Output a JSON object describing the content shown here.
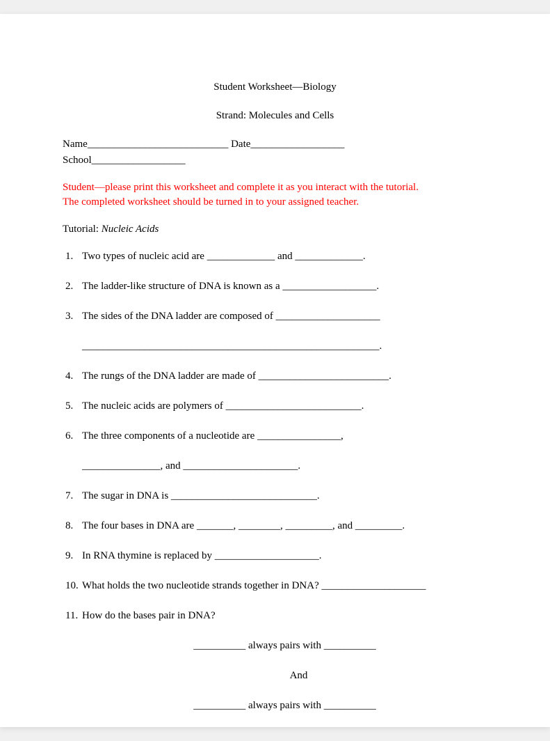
{
  "header": {
    "title": "Student Worksheet—Biology",
    "strand": "Strand: Molecules and Cells"
  },
  "info": {
    "name_label": "Name",
    "name_blank": "___________________________",
    "date_label": "Date",
    "date_blank": "__________________",
    "school_label": "School",
    "school_blank": "__________________"
  },
  "instructions": {
    "line1": "Student—please print this worksheet and complete it as you interact with the tutorial.",
    "line2": "The completed worksheet should be turned in to your assigned teacher."
  },
  "tutorial": {
    "label": "Tutorial:",
    "name": "Nucleic Acids"
  },
  "questions": {
    "q1": {
      "num": "1.",
      "text": "Two types of nucleic acid are _____________ and _____________."
    },
    "q2": {
      "num": "2.",
      "text": "The ladder-like structure of DNA is known as a __________________."
    },
    "q3": {
      "num": "3.",
      "text": "The sides of the DNA ladder are composed of ____________________",
      "continuation": "_________________________________________________________."
    },
    "q4": {
      "num": "4.",
      "text": "The rungs of the DNA ladder are made of _________________________."
    },
    "q5": {
      "num": "5.",
      "text": "The nucleic acids are polymers of __________________________."
    },
    "q6": {
      "num": "6.",
      "text": "The three components of a nucleotide are ________________,",
      "continuation": "_______________,  and ______________________."
    },
    "q7": {
      "num": "7.",
      "text": "The sugar in DNA is ____________________________."
    },
    "q8": {
      "num": "8.",
      "text": "The four bases in DNA are _______, ________, _________, and _________."
    },
    "q9": {
      "num": "9.",
      "text": "In RNA thymine is replaced by ____________________."
    },
    "q10": {
      "num": "10.",
      "text": "What holds the two nucleotide strands together in DNA?  ____________________"
    },
    "q11": {
      "num": "11.",
      "text": "How do the bases pair in DNA?",
      "sub1": "__________ always pairs with __________",
      "and": "And",
      "sub2": "__________ always pairs with __________"
    }
  }
}
